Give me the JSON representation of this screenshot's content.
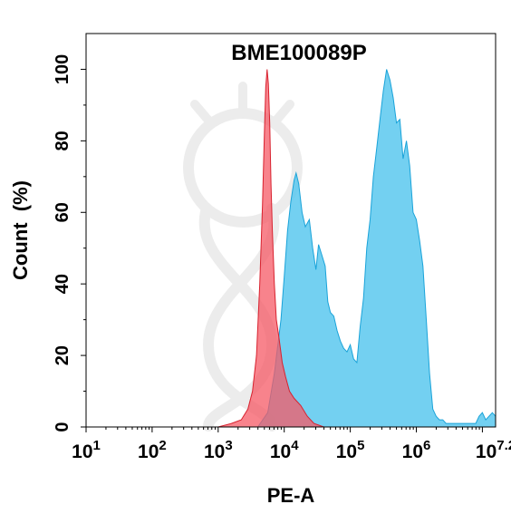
{
  "chart_data": {
    "type": "area",
    "title": "BME100089P",
    "xlabel": "PE-A",
    "ylabel": "Count  (%)",
    "x_scale": "log",
    "xlim": [
      1,
      7.2
    ],
    "ylim": [
      0,
      110
    ],
    "grid": false,
    "x_ticks": [
      {
        "base": "10",
        "exp": "1",
        "value": 1
      },
      {
        "base": "10",
        "exp": "2",
        "value": 2
      },
      {
        "base": "10",
        "exp": "3",
        "value": 3
      },
      {
        "base": "10",
        "exp": "4",
        "value": 4
      },
      {
        "base": "10",
        "exp": "5",
        "value": 5
      },
      {
        "base": "10",
        "exp": "6",
        "value": 6
      },
      {
        "base": "10",
        "exp": "7.2",
        "value": 7.2
      }
    ],
    "y_ticks": [
      "0",
      "20",
      "40",
      "60",
      "80",
      "100"
    ],
    "series": [
      {
        "color": "#5BC8EE",
        "stroke": "#1AA3D9",
        "x_log10": [
          3.6,
          3.75,
          3.85,
          3.95,
          4.0,
          4.05,
          4.1,
          4.15,
          4.18,
          4.22,
          4.27,
          4.32,
          4.38,
          4.43,
          4.48,
          4.52,
          4.57,
          4.62,
          4.66,
          4.7,
          4.75,
          4.8,
          4.85,
          4.9,
          4.95,
          5.0,
          5.05,
          5.1,
          5.15,
          5.2,
          5.25,
          5.3,
          5.35,
          5.4,
          5.45,
          5.5,
          5.55,
          5.6,
          5.65,
          5.7,
          5.75,
          5.8,
          5.85,
          5.9,
          5.95,
          6.0,
          6.05,
          6.1,
          6.15,
          6.2,
          6.25,
          6.3,
          6.35,
          6.4,
          6.45,
          6.5,
          6.55,
          6.6,
          6.65,
          6.7,
          6.75,
          6.8,
          6.85,
          6.9,
          6.95,
          7.0,
          7.05,
          7.1,
          7.15,
          7.2
        ],
        "y": [
          0,
          4,
          15,
          30,
          42,
          55,
          63,
          69,
          71,
          68,
          60,
          56,
          58,
          50,
          44,
          51,
          48,
          45,
          35,
          32,
          31,
          27,
          24,
          22,
          21,
          23,
          19,
          18,
          28,
          36,
          50,
          58,
          70,
          78,
          86,
          94,
          100,
          97,
          92,
          85,
          86,
          75,
          80,
          73,
          60,
          58,
          52,
          45,
          30,
          15,
          5,
          3,
          2,
          2,
          1,
          1,
          1,
          1,
          1,
          1,
          1,
          1,
          1,
          1,
          3,
          4,
          2,
          3,
          4,
          3
        ]
      },
      {
        "color": "#F55A66",
        "stroke": "#D8222F",
        "x_log10": [
          3.0,
          3.2,
          3.35,
          3.45,
          3.52,
          3.58,
          3.63,
          3.67,
          3.7,
          3.72,
          3.74,
          3.76,
          3.78,
          3.8,
          3.82,
          3.85,
          3.88,
          3.92,
          3.97,
          4.02,
          4.08,
          4.15,
          4.25,
          4.35,
          4.45,
          4.6
        ],
        "y": [
          0,
          1,
          2,
          5,
          10,
          20,
          40,
          62,
          82,
          95,
          100,
          96,
          85,
          68,
          55,
          40,
          30,
          25,
          18,
          14,
          10,
          8,
          6,
          3,
          1,
          0
        ]
      }
    ]
  }
}
